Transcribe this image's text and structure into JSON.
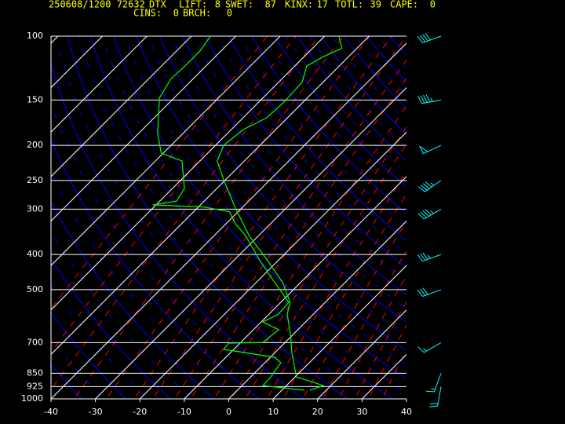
{
  "header": {
    "line1": [
      "250608/1200 72632",
      "DTX",
      "LIFT:",
      8,
      "SWET:",
      87,
      "KINX:",
      17,
      "TOTL:",
      39,
      "CAPE:",
      0
    ],
    "line2": [
      "CINS:",
      0,
      "BRCH:",
      0
    ]
  },
  "chart_data": {
    "type": "skewt",
    "xlim": [
      -40,
      40
    ],
    "xticks": [
      -40,
      -30,
      -20,
      -10,
      0,
      10,
      20,
      30,
      40
    ],
    "ylim": [
      1000,
      100
    ],
    "yticks": [
      1000,
      925,
      850,
      700,
      500,
      400,
      300,
      250,
      200,
      150,
      100
    ],
    "log_y": true,
    "series": [
      {
        "color": "#00ff00",
        "x": [
          946,
          919,
          870,
          749,
          661,
          584,
          542,
          478,
          412,
          355,
          298,
          250,
          221,
          200,
          181,
          168,
          152,
          134,
          121,
          114,
          108,
          100
        ],
        "values": [
          16.3,
          18.3,
          10.3,
          4.0,
          -0.8,
          -5.9,
          -7.9,
          -14.0,
          -22.9,
          -32.1,
          -41.4,
          -50.2,
          -56.1,
          -58.2,
          -57.3,
          -54.7,
          -54.3,
          -54.7,
          -57.3,
          -55.7,
          -53.4,
          -56.8
        ]
      },
      {
        "color": "#00ff00",
        "x": [
          946,
          919,
          870,
          795,
          768,
          749,
          730,
          702,
          699,
          645,
          614,
          584,
          542,
          478,
          412,
          355,
          329,
          305,
          296,
          292,
          285,
          263,
          221,
          210,
          185,
          148,
          131,
          121,
          110,
          100
        ],
        "values": [
          15.1,
          4.7,
          4.5,
          3.6,
          1.0,
          -5.6,
          -12.3,
          -12.5,
          -5.0,
          -4.3,
          -9.6,
          -7.9,
          -8.2,
          -15.8,
          -24.6,
          -32.9,
          -37.9,
          -41.9,
          -48.7,
          -60.7,
          -56.2,
          -57.3,
          -64.0,
          -70.5,
          -75.8,
          -83.3,
          -85.0,
          -84.7,
          -84.7,
          -85.7
        ]
      }
    ],
    "winds": {
      "color": "#00ffff",
      "pressure": [
        100,
        150,
        200,
        250,
        300,
        400,
        500,
        700,
        850,
        925
      ],
      "direction": [
        250,
        260,
        245,
        235,
        240,
        250,
        250,
        240,
        200,
        190
      ],
      "speed": [
        40,
        45,
        50,
        45,
        45,
        35,
        30,
        15,
        15,
        20
      ]
    }
  }
}
